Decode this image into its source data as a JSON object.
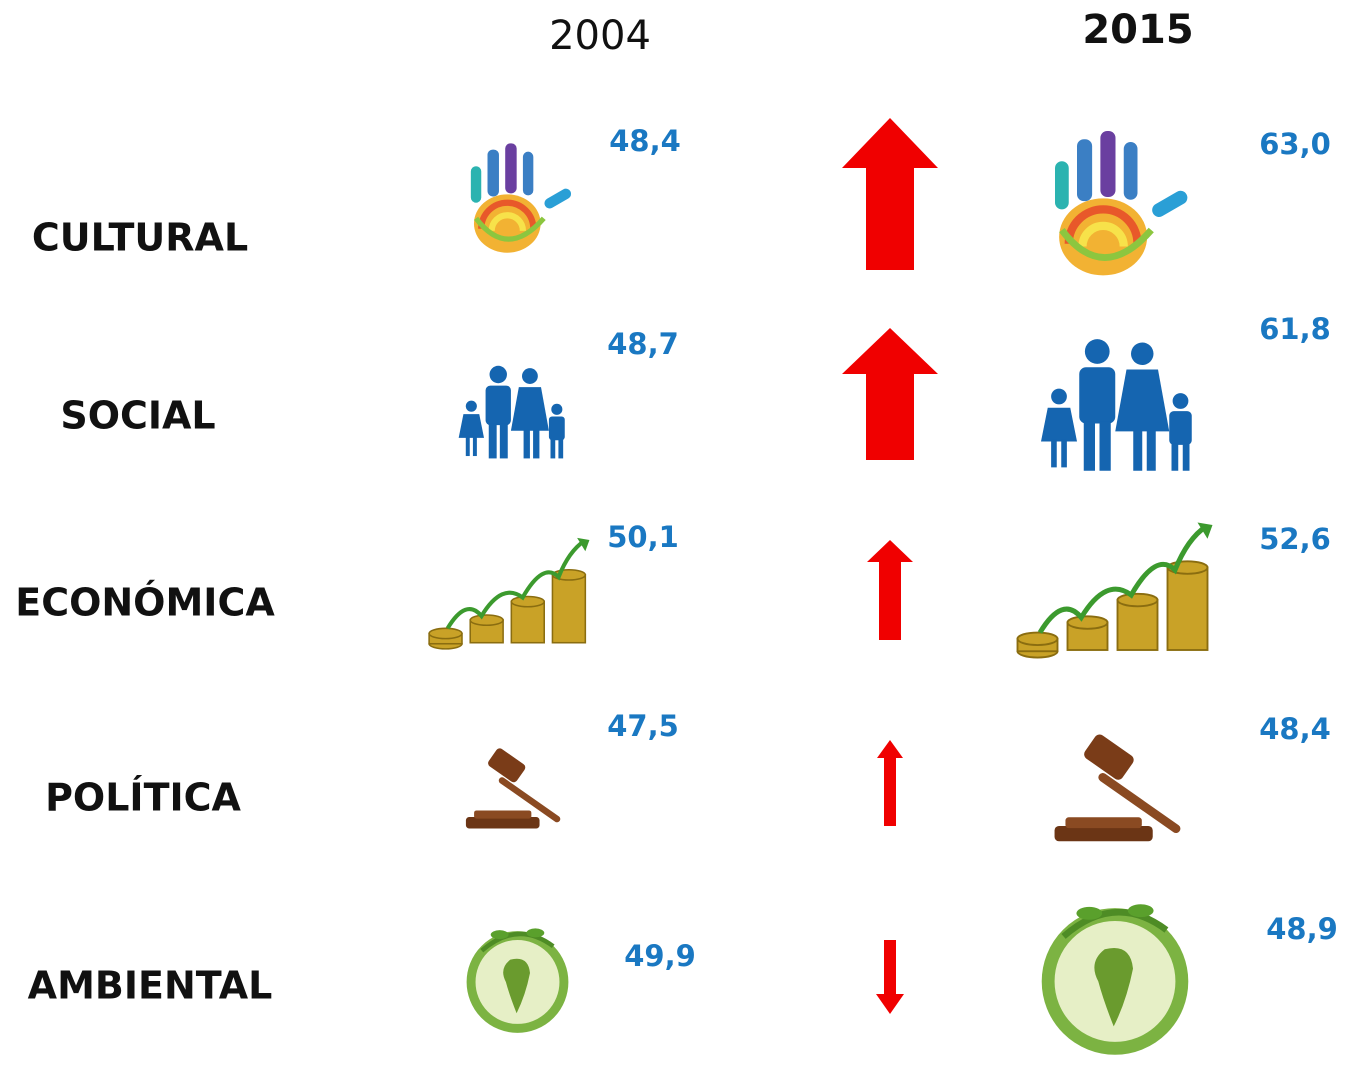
{
  "header": {
    "year_left": "2004",
    "year_right": "2015"
  },
  "rows": [
    {
      "label": "CULTURAL",
      "value_2004": "48,4",
      "value_2015": "63,0"
    },
    {
      "label": "SOCIAL",
      "value_2004": "48,7",
      "value_2015": "61,8"
    },
    {
      "label": "ECONÓMICA",
      "value_2004": "50,1",
      "value_2015": "52,6"
    },
    {
      "label": "POLÍTICA",
      "value_2004": "47,5",
      "value_2015": "48,4"
    },
    {
      "label": "AMBIENTAL",
      "value_2004": "49,9",
      "value_2015": "48,9"
    }
  ]
}
